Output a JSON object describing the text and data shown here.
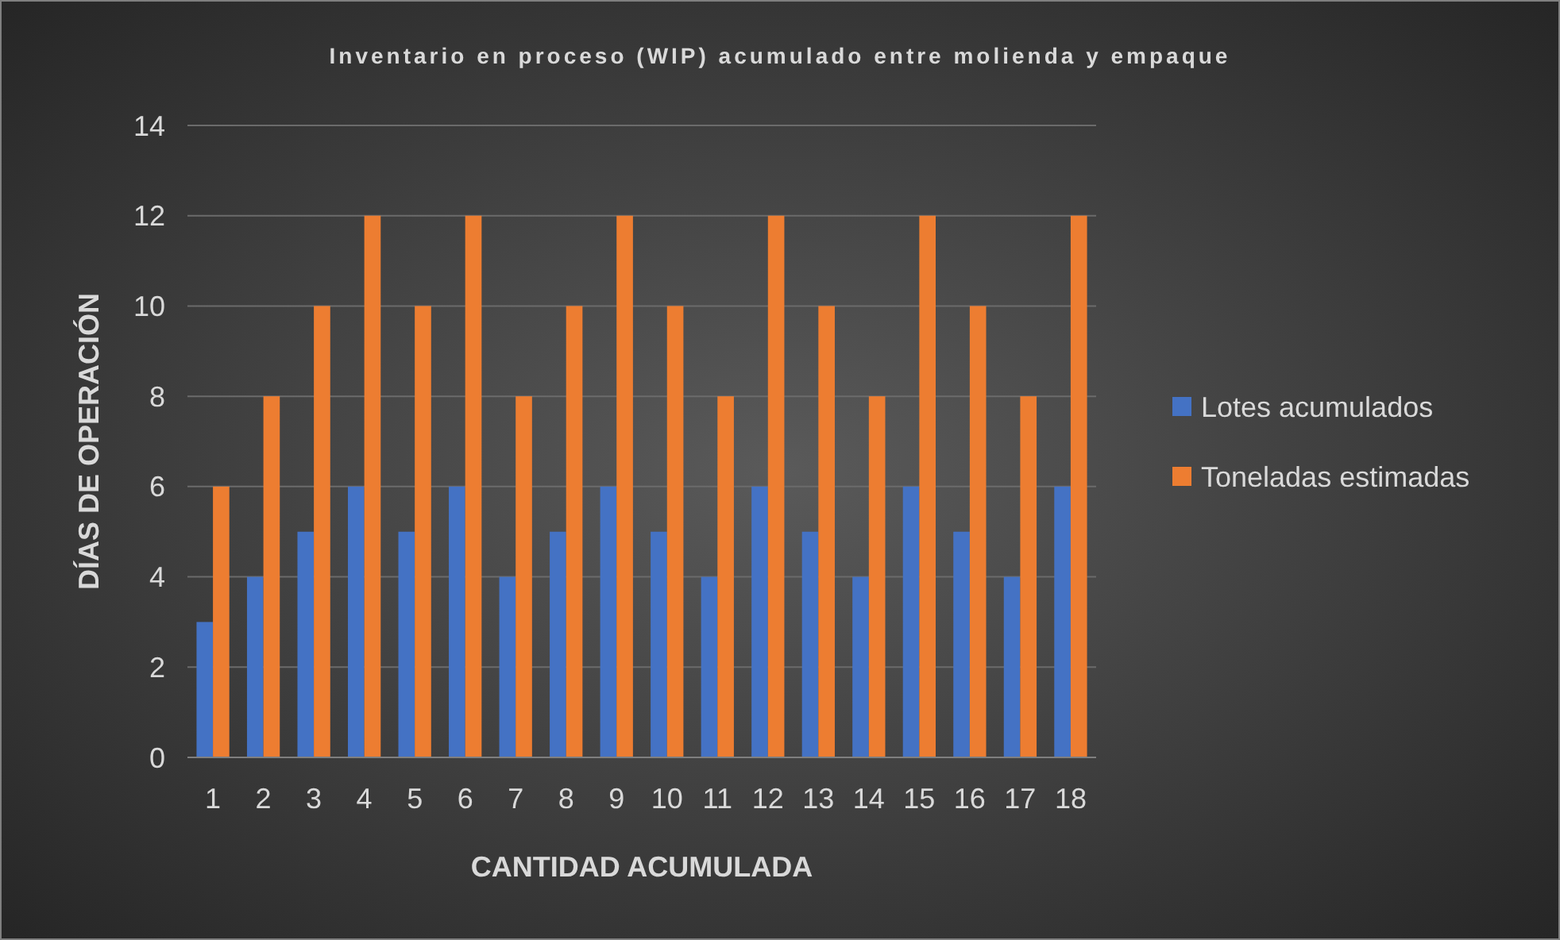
{
  "chart_data": {
    "type": "bar",
    "title": "Inventario en proceso (WIP) acumulado entre molienda y empaque",
    "xlabel": "CANTIDAD ACUMULADA",
    "ylabel": "DÍAS DE OPERACIÓN",
    "categories": [
      "1",
      "2",
      "3",
      "4",
      "5",
      "6",
      "7",
      "8",
      "9",
      "10",
      "11",
      "12",
      "13",
      "14",
      "15",
      "16",
      "17",
      "18"
    ],
    "series": [
      {
        "name": "Lotes acumulados",
        "color": "#4472c4",
        "values": [
          3,
          4,
          5,
          6,
          5,
          6,
          4,
          5,
          6,
          5,
          4,
          6,
          5,
          4,
          6,
          5,
          4,
          6
        ]
      },
      {
        "name": "Toneladas estimadas",
        "color": "#ed7d31",
        "values": [
          6,
          8,
          10,
          12,
          10,
          12,
          8,
          10,
          12,
          10,
          8,
          12,
          10,
          8,
          12,
          10,
          8,
          12
        ]
      }
    ],
    "ylim": [
      0,
      14
    ],
    "yticks": [
      0,
      2,
      4,
      6,
      8,
      10,
      12,
      14
    ],
    "grid": "y",
    "legend": "right"
  }
}
